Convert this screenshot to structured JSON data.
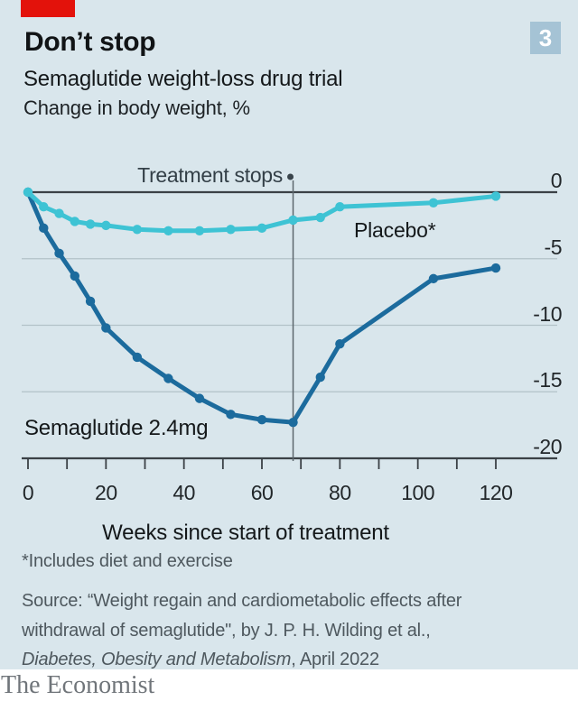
{
  "header": {
    "title": "Don’t stop",
    "subtitle": "Semaglutide weight-loss drug trial",
    "unit_label": "Change in body weight, %",
    "figure_number": "3"
  },
  "chart_data": {
    "type": "line",
    "title": "Don’t stop",
    "subtitle": "Semaglutide weight-loss drug trial",
    "ylabel_unit": "Change in body weight, %",
    "x": [
      0,
      4,
      8,
      12,
      16,
      20,
      28,
      36,
      44,
      52,
      60,
      68,
      75,
      80,
      104,
      120
    ],
    "series": [
      {
        "name": "Semaglutide 2.4mg",
        "color": "#1c6b9d",
        "values": [
          0,
          -2.7,
          -4.6,
          -6.3,
          -8.2,
          -10.2,
          -12.4,
          -14.0,
          -15.5,
          -16.7,
          -17.1,
          -17.3,
          -13.9,
          -11.4,
          -6.5,
          -5.7
        ]
      },
      {
        "name": "Placebo*",
        "color": "#3ec3d4",
        "values": [
          0,
          -1.1,
          -1.6,
          -2.2,
          -2.4,
          -2.5,
          -2.8,
          -2.9,
          -2.9,
          -2.8,
          -2.7,
          -2.1,
          -1.9,
          -1.1,
          -0.8,
          -0.3
        ]
      }
    ],
    "annotation": {
      "label": "Treatment stops",
      "week": 68
    },
    "xlabel": "Weeks since start of treatment",
    "xlim": [
      0,
      136
    ],
    "ylim": [
      -20,
      0
    ],
    "grid": true,
    "legend": "inline-labels",
    "xticks": [
      0,
      10,
      20,
      30,
      40,
      50,
      60,
      70,
      80,
      90,
      100,
      110,
      120
    ],
    "xtick_values": [
      0,
      20,
      40,
      60,
      80,
      100,
      120
    ],
    "xtick_labels": [
      "0",
      "20",
      "40",
      "60",
      "80",
      "100",
      "120"
    ],
    "ytick_values": [
      0,
      -5,
      -10,
      -15,
      -20
    ],
    "ytick_labels": [
      "0",
      "-5",
      "-10",
      "-15",
      "-20"
    ]
  },
  "theme": {
    "background": "#d9e6ec",
    "accent_red": "#e3120b",
    "badge_bg": "#a5c3d5",
    "badge_text": "#ffffff",
    "ink": "#14181a",
    "footer_text": "#4e585e",
    "axis": "#3b4146",
    "grid": "#b2c1c8",
    "annotation_line": "#5d676d",
    "annotation_dot": "#39444b",
    "brand_gray": "#70757a"
  },
  "footer": {
    "footnote": "*Includes diet and exercise",
    "source_line1": "Source: “Weight regain and cardiometabolic effects after",
    "source_line2": "withdrawal of semaglutide\", by J. P. H. Wilding et al.,",
    "source_line3_italic": "Diabetes, Obesity and Metabolism",
    "source_line3_rest": ", April 2022",
    "brand": "The Economist"
  }
}
